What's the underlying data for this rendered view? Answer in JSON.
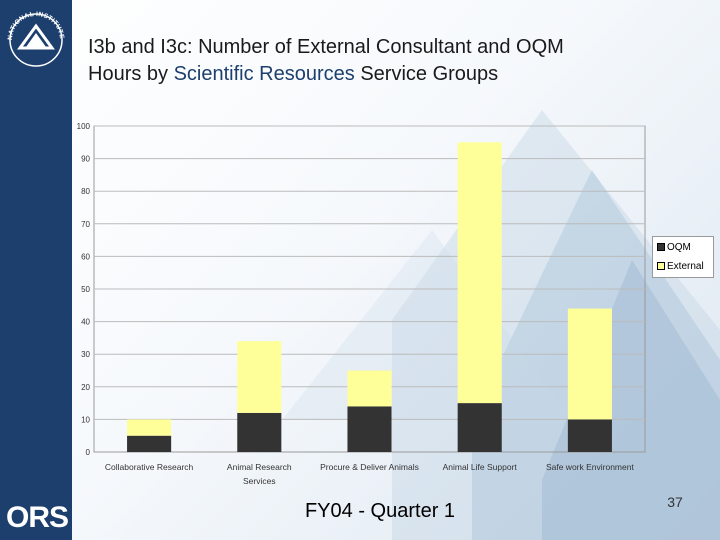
{
  "slide": {
    "title_line1": "I3b and I3c:  Number of External Consultant and OQM",
    "title_line2_pre": "Hours by ",
    "title_line2_hl": "Scientific Resources",
    "title_line2_post": " Service Groups",
    "footer": "FY04 - Quarter 1",
    "page_number": "37",
    "logo_top_text": "NATIONAL INSTITUTES OF HEALTH",
    "logo_bottom_text": "ORS"
  },
  "colors": {
    "sidebar": "#1d3f6e",
    "oqm": "#333333",
    "external": "#ffff99"
  },
  "chart_data": {
    "type": "bar",
    "stacked": true,
    "categories": [
      [
        "Collaborative Research"
      ],
      [
        "Animal Research",
        "Services"
      ],
      [
        "Procure & Deliver Animals"
      ],
      [
        "Animal Life Support"
      ],
      [
        "Safe work Environment"
      ]
    ],
    "series": [
      {
        "name": "OQM",
        "color": "#333333",
        "values": [
          5,
          12,
          14,
          15,
          10
        ]
      },
      {
        "name": "External",
        "color": "#ffff99",
        "values": [
          5,
          22,
          11,
          80,
          34
        ]
      }
    ],
    "yticks": [
      "0",
      "10",
      "20",
      "30",
      "40",
      "50",
      "60",
      "70",
      "80",
      "90",
      "100"
    ],
    "ylim": [
      0,
      100
    ],
    "legend_position": "right",
    "grid": true
  }
}
